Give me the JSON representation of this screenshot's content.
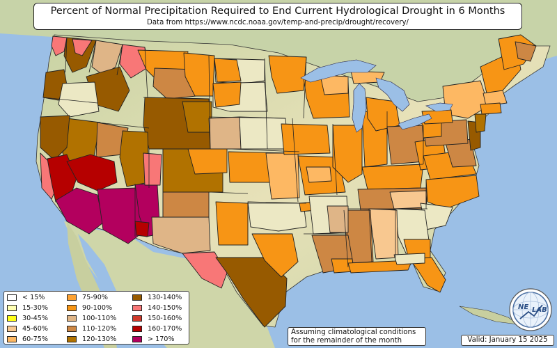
{
  "header": {
    "title": "Percent of Normal Precipitation Required to End Current Hydrological Drought in 6 Months",
    "subtitle": "Data from https://www.ncdc.noaa.gov/temp-and-precip/drought/recovery/"
  },
  "legend": {
    "items": [
      {
        "label": "< 15%",
        "color": "#ffffff"
      },
      {
        "label": "15-30%",
        "color": "#ffffb3"
      },
      {
        "label": "30-45%",
        "color": "#ffff1a"
      },
      {
        "label": "45-60%",
        "color": "#f8c890"
      },
      {
        "label": "60-75%",
        "color": "#fdb863"
      },
      {
        "label": "75-90%",
        "color": "#fda233"
      },
      {
        "label": "90-100%",
        "color": "#f79515"
      },
      {
        "label": "100-110%",
        "color": "#dfb587"
      },
      {
        "label": "110-120%",
        "color": "#cd8744"
      },
      {
        "label": "120-130%",
        "color": "#b17200"
      },
      {
        "label": "130-140%",
        "color": "#975a00"
      },
      {
        "label": "140-150%",
        "color": "#f87777"
      },
      {
        "label": "150-160%",
        "color": "#d03a2c"
      },
      {
        "label": "160-170%",
        "color": "#b60000"
      },
      {
        "label": "> 170%",
        "color": "#b3005e"
      }
    ]
  },
  "note": {
    "line1": "Assuming climatological conditions",
    "line2": "for the remainder of the month"
  },
  "valid_label": "Valid: January 15 2025",
  "logo": {
    "text_left": "NE",
    "text_right": "LAB"
  },
  "colors": {
    "ocean": "#9bbfe6",
    "land": "#ece8c4",
    "border": "#222222"
  }
}
